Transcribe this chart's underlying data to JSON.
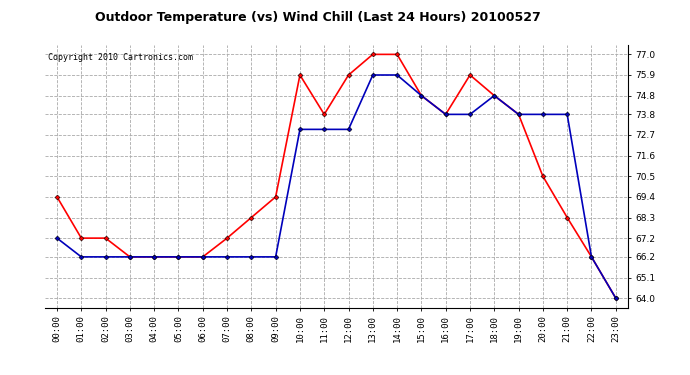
{
  "title": "Outdoor Temperature (vs) Wind Chill (Last 24 Hours) 20100527",
  "copyright": "Copyright 2010 Cartronics.com",
  "hours": [
    "00:00",
    "01:00",
    "02:00",
    "03:00",
    "04:00",
    "05:00",
    "06:00",
    "07:00",
    "08:00",
    "09:00",
    "10:00",
    "11:00",
    "12:00",
    "13:00",
    "14:00",
    "15:00",
    "16:00",
    "17:00",
    "18:00",
    "19:00",
    "20:00",
    "21:00",
    "22:00",
    "23:00"
  ],
  "temp": [
    69.4,
    67.2,
    67.2,
    66.2,
    66.2,
    66.2,
    66.2,
    67.2,
    68.3,
    69.4,
    75.9,
    73.8,
    75.9,
    77.0,
    77.0,
    74.8,
    73.8,
    75.9,
    74.8,
    73.8,
    70.5,
    68.3,
    66.2,
    64.0
  ],
  "windchill": [
    67.2,
    66.2,
    66.2,
    66.2,
    66.2,
    66.2,
    66.2,
    66.2,
    66.2,
    66.2,
    73.0,
    73.0,
    73.0,
    75.9,
    75.9,
    74.8,
    73.8,
    73.8,
    74.8,
    73.8,
    73.8,
    73.8,
    66.2,
    64.0
  ],
  "temp_color": "#ff0000",
  "windchill_color": "#0000bb",
  "bg_color": "#ffffff",
  "grid_color": "#aaaaaa",
  "ylim_min": 63.5,
  "ylim_max": 77.5,
  "yticks": [
    64.0,
    65.1,
    66.2,
    67.2,
    68.3,
    69.4,
    70.5,
    71.6,
    72.7,
    73.8,
    74.8,
    75.9,
    77.0
  ],
  "marker": "D",
  "marker_size": 2.5,
  "line_width": 1.2,
  "title_fontsize": 9,
  "copyright_fontsize": 6,
  "tick_fontsize": 6.5
}
